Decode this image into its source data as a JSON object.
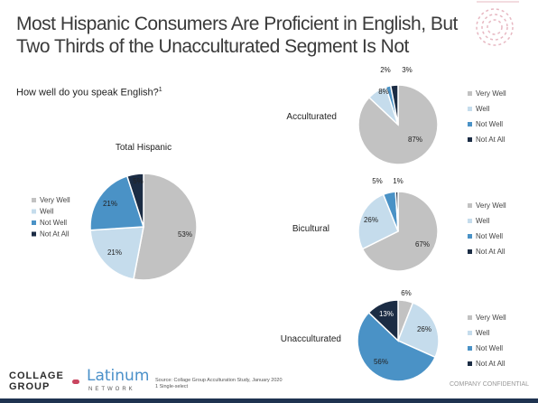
{
  "title": "Most Hispanic Consumers Are Proficient in English, But Two Thirds of the Unacculturated Segment Is Not",
  "question": "How well do you speak English?",
  "question_footnote": "1",
  "colors": {
    "Very Well": "#c2c2c2",
    "Well": "#c5dcec",
    "Not Well": "#4a92c6",
    "Not At All": "#1b2c44"
  },
  "chart_data": [
    {
      "type": "pie",
      "title": "Total Hispanic",
      "categories": [
        "Very Well",
        "Well",
        "Not Well",
        "Not At All"
      ],
      "values": [
        53,
        21,
        21,
        5
      ],
      "labels": [
        "53%",
        "21%",
        "21%",
        "5%"
      ],
      "legend": "left"
    },
    {
      "type": "pie",
      "title": "Acculturated",
      "categories": [
        "Very Well",
        "Well",
        "Not Well",
        "Not At All"
      ],
      "values": [
        87,
        8,
        2,
        3
      ],
      "labels": [
        "87%",
        "8%",
        "2%",
        "3%"
      ],
      "legend": "right"
    },
    {
      "type": "pie",
      "title": "Bicultural",
      "categories": [
        "Very Well",
        "Well",
        "Not Well",
        "Not At All"
      ],
      "values": [
        67,
        26,
        5,
        1
      ],
      "labels": [
        "67%",
        "26%",
        "5%",
        "1%"
      ],
      "legend": "right"
    },
    {
      "type": "pie",
      "title": "Unacculturated",
      "categories": [
        "Very Well",
        "Well",
        "Not Well",
        "Not At All"
      ],
      "values": [
        6,
        26,
        56,
        13
      ],
      "labels": [
        "6%",
        "26%",
        "56%",
        "13%"
      ],
      "legend": "right"
    }
  ],
  "logos": {
    "collage_line1": "COLLAGE",
    "collage_line2": "GROUP",
    "latinum": "Latinum",
    "network": "NETWORK"
  },
  "source_lines": [
    "Source: Collage Group Acculturation Study, January 2020",
    "1 Single-select"
  ],
  "confidential": "COMPANY CONFIDENTIAL"
}
